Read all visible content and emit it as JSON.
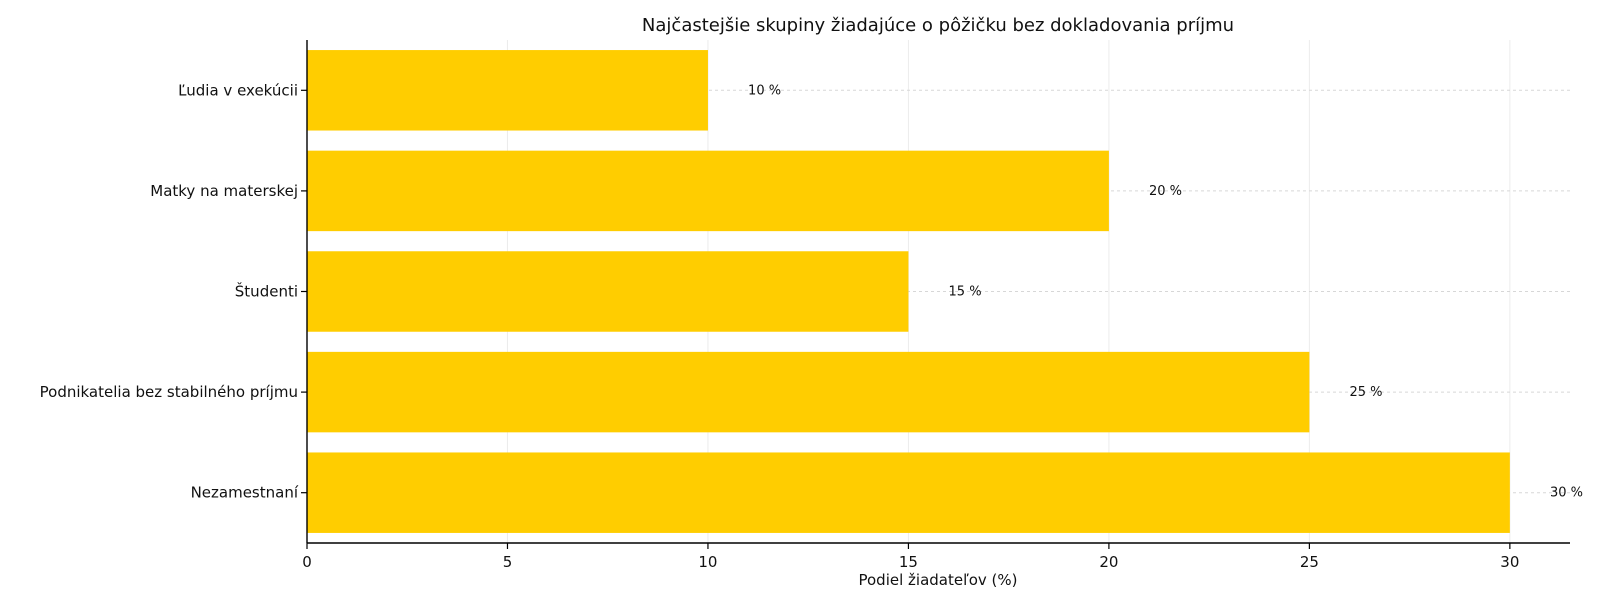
{
  "chart_data": {
    "type": "bar",
    "orientation": "horizontal",
    "title": "Najčastejšie skupiny žiadajúce o pôžičku bez dokladovania príjmu",
    "xlabel": "Podiel žiadateľov (%)",
    "ylabel": "",
    "categories": [
      "Ľudia v exekúcii",
      "Matky na materskej",
      "Študenti",
      "Podnikatelia bez stabilného príjmu",
      "Nezamestnaní"
    ],
    "values": [
      10,
      20,
      15,
      25,
      30
    ],
    "value_labels": [
      "10 %",
      "20 %",
      "15 %",
      "25 %",
      "30 %"
    ],
    "xlim": [
      0,
      31.5
    ],
    "xticks": [
      0,
      5,
      10,
      15,
      20,
      25,
      30
    ],
    "xtick_labels": [
      "0",
      "5",
      "10",
      "15",
      "20",
      "25",
      "30"
    ],
    "grid": true,
    "colors": {
      "bar": "#FFCD00",
      "axis": "#000000",
      "grid": "#d7d7d7"
    }
  }
}
